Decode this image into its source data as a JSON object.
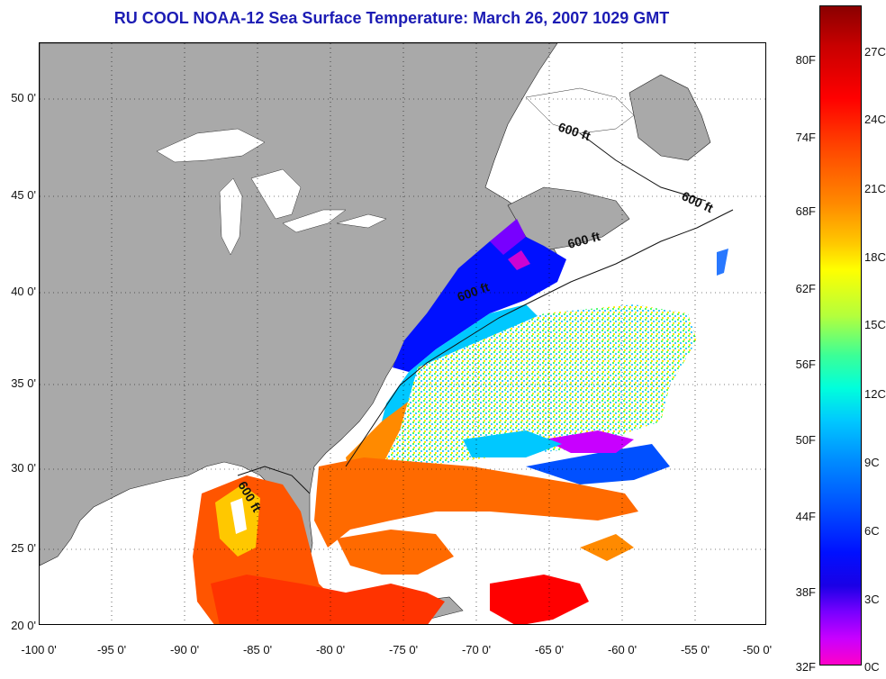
{
  "title": "RU COOL  NOAA-12  Sea Surface Temperature:  March 26, 2007 1029 GMT",
  "lat_labels": [
    "50 0'",
    "45 0'",
    "40 0'",
    "35 0'",
    "30 0'",
    "25 0'",
    "20 0'"
  ],
  "lon_labels": [
    "-100 0'",
    "-95 0'",
    "-90 0'",
    "-85 0'",
    "-80 0'",
    "-75 0'",
    "-70 0'",
    "-65 0'",
    "-60 0'",
    "-55 0'",
    "-50 0'"
  ],
  "contour_label": "600 ft",
  "colorbar": {
    "f_labels": [
      "80F",
      "74F",
      "68F",
      "62F",
      "56F",
      "50F",
      "44F",
      "38F",
      "32F"
    ],
    "c_labels": [
      "27C",
      "24C",
      "21C",
      "18C",
      "15C",
      "12C",
      "9C",
      "6C",
      "3C",
      "0C"
    ]
  },
  "colors": {
    "land": "#a9a9a9",
    "title": "#1c1cb4",
    "no_data": "#ffffff"
  }
}
